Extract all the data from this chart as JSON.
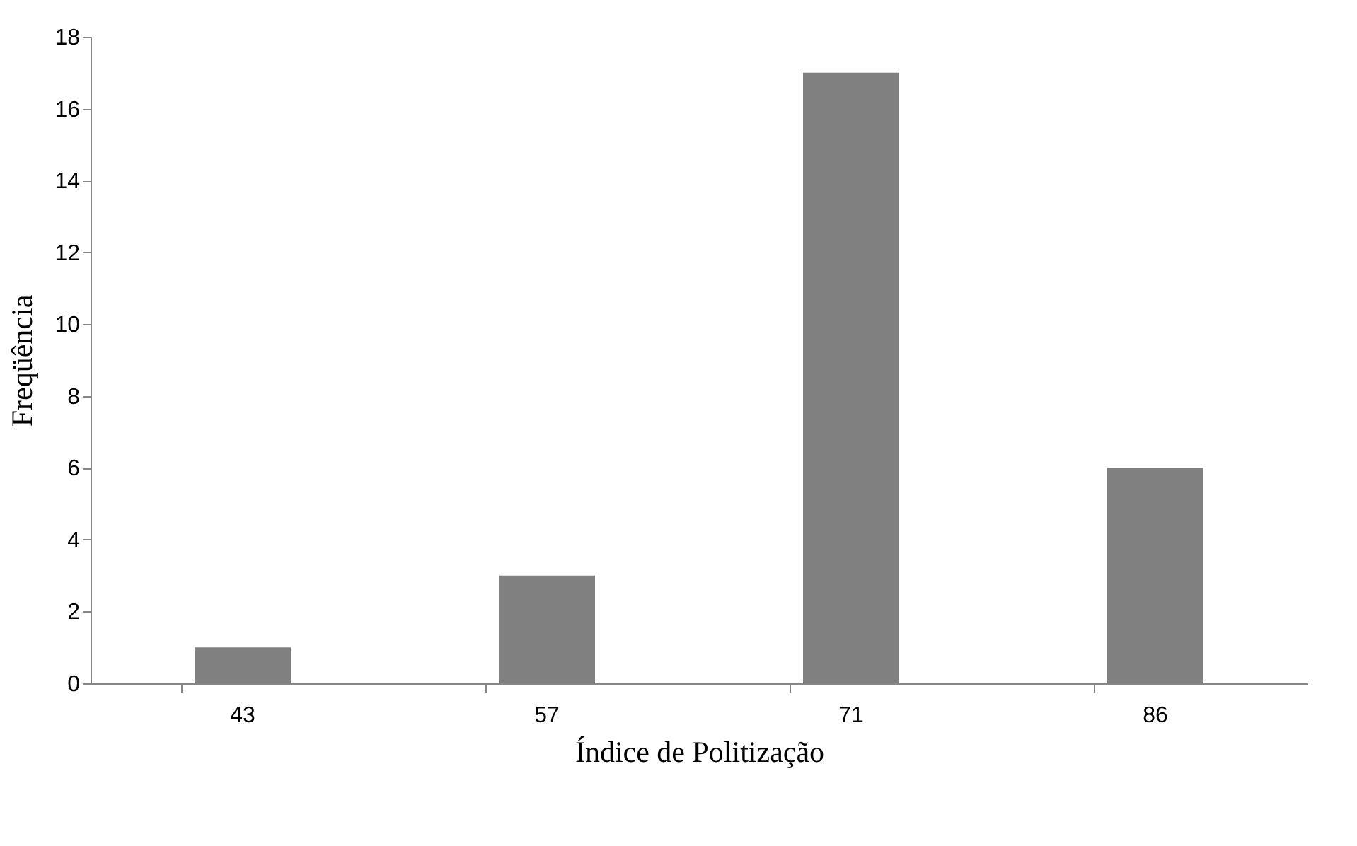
{
  "chart_data": {
    "type": "bar",
    "categories": [
      "43",
      "57",
      "71",
      "86"
    ],
    "values": [
      1,
      3,
      17,
      6
    ],
    "color": "#808080",
    "xlabel": "Índice de Politização",
    "ylabel": "Freqüência",
    "ylim": [
      0,
      18
    ],
    "yticks": [
      0,
      2,
      4,
      6,
      8,
      10,
      12,
      14,
      16,
      18
    ]
  }
}
